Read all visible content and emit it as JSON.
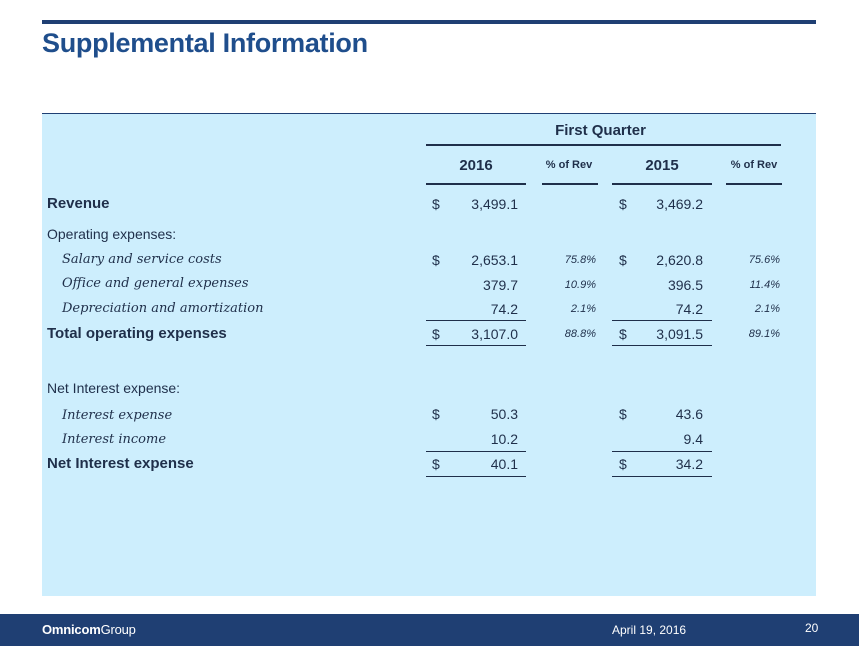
{
  "title": "Supplemental Information",
  "header": {
    "group": "First Quarter",
    "year_a": "2016",
    "pct_a": "% of Rev",
    "year_b": "2015",
    "pct_b": "% of Rev"
  },
  "rows": [
    {
      "label": "Revenue",
      "d16": "$",
      "v16": "3,499.1",
      "p16": "",
      "d15": "$",
      "v15": "3,469.2",
      "p15": ""
    },
    {
      "label": "Operating expenses:",
      "d16": "",
      "v16": "",
      "p16": "",
      "d15": "",
      "v15": "",
      "p15": ""
    },
    {
      "label": "Salary and service costs",
      "d16": "$",
      "v16": "2,653.1",
      "p16": "75.8%",
      "d15": "$",
      "v15": "2,620.8",
      "p15": "75.6%"
    },
    {
      "label": "Office and general expenses",
      "d16": "",
      "v16": "379.7",
      "p16": "10.9%",
      "d15": "",
      "v15": "396.5",
      "p15": "11.4%"
    },
    {
      "label": "Depreciation and amortization",
      "d16": "",
      "v16": "74.2",
      "p16": "2.1%",
      "d15": "",
      "v15": "74.2",
      "p15": "2.1%"
    },
    {
      "label": "Total operating expenses",
      "d16": "$",
      "v16": "3,107.0",
      "p16": "88.8%",
      "d15": "$",
      "v15": "3,091.5",
      "p15": "89.1%"
    },
    {
      "label": "Net Interest expense:",
      "d16": "",
      "v16": "",
      "p16": "",
      "d15": "",
      "v15": "",
      "p15": ""
    },
    {
      "label": "Interest expense",
      "d16": "$",
      "v16": "50.3",
      "p16": "",
      "d15": "$",
      "v15": "43.6",
      "p15": ""
    },
    {
      "label": "Interest income",
      "d16": "",
      "v16": "10.2",
      "p16": "",
      "d15": "",
      "v15": "9.4",
      "p15": ""
    },
    {
      "label": "Net Interest expense",
      "d16": "$",
      "v16": "40.1",
      "p16": "",
      "d15": "$",
      "v15": "34.2",
      "p15": ""
    }
  ],
  "footer": {
    "logo_bold": "Omnicom",
    "logo_rest": "Group",
    "date": "April 19, 2016",
    "page": "20"
  }
}
